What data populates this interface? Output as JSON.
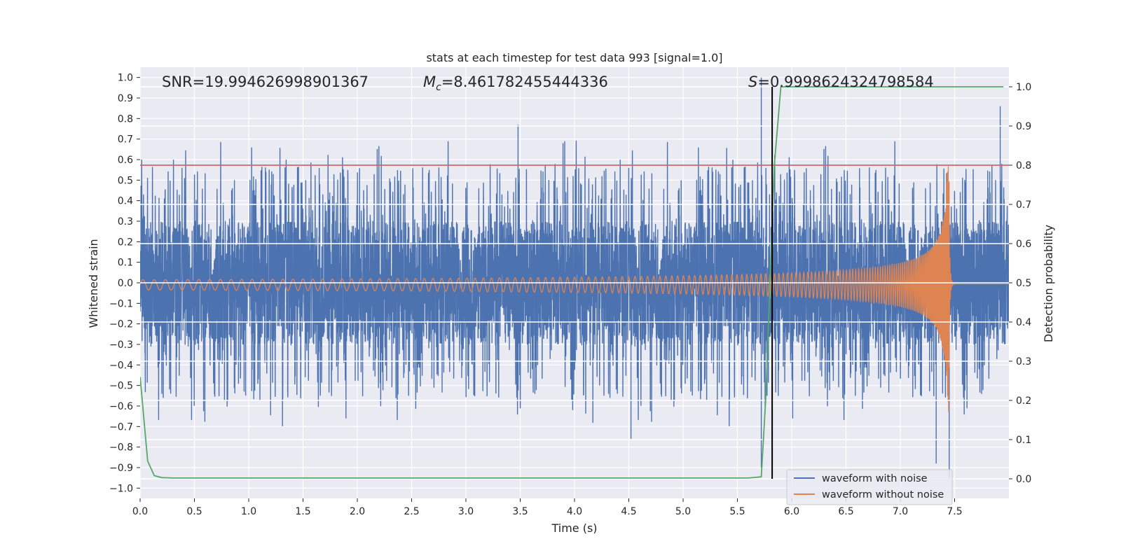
{
  "chart_data": {
    "type": "line",
    "title": "stats at each timestep for test data 993 [signal=1.0]",
    "xlabel": "Time (s)",
    "ylabel": "Whitened strain",
    "y2label": "Detection probability",
    "xlim": [
      0.0,
      8.0
    ],
    "ylim": [
      -1.05,
      1.05
    ],
    "y2lim": [
      -0.05,
      1.05
    ],
    "xticks": [
      "0.0",
      "0.5",
      "1.0",
      "1.5",
      "2.0",
      "2.5",
      "3.0",
      "3.5",
      "4.0",
      "4.5",
      "5.0",
      "5.5",
      "6.0",
      "6.5",
      "7.0",
      "7.5"
    ],
    "yticks": [
      "1.0",
      "0.9",
      "0.8",
      "0.7",
      "0.6",
      "0.5",
      "0.4",
      "0.3",
      "0.2",
      "0.1",
      "0.0",
      "−0.1",
      "−0.2",
      "−0.3",
      "−0.4",
      "−0.5",
      "−0.6",
      "−0.7",
      "−0.8",
      "−0.9",
      "−1.0"
    ],
    "y2ticks": [
      "1.0",
      "0.9",
      "0.8",
      "0.7",
      "0.6",
      "0.5",
      "0.4",
      "0.3",
      "0.2",
      "0.1",
      "0.0"
    ],
    "grid": true,
    "legend_placement": "lower-right",
    "annotations": {
      "snr": "SNR=19.994626998901367",
      "mc": "=8.461782455444336",
      "s": "=0.9998624324798584"
    },
    "threshold_y": 0.8,
    "detection_time": 5.82,
    "colors": {
      "noise": "#4c72b0",
      "clean": "#dd8452",
      "probability": "#55a868",
      "threshold": "#c44e52",
      "marker": "#000000",
      "plot_bg": "#eaeaf2"
    },
    "series": [
      {
        "name": "waveform with noise",
        "kind": "noise",
        "amplitude_envelope": 0.3,
        "notable_peaks": [
          {
            "x": 5.72,
            "y": 1.0
          },
          {
            "x": 7.92,
            "y": 0.86
          },
          {
            "x": 3.48,
            "y": 0.77
          },
          {
            "x": 5.72,
            "y": -0.9
          },
          {
            "x": 7.45,
            "y": -0.95
          },
          {
            "x": 7.33,
            "y": -0.88
          },
          {
            "x": 4.52,
            "y": -0.76
          }
        ]
      },
      {
        "name": "waveform without noise",
        "kind": "chirp",
        "start_amplitude": 0.025,
        "peak_x": 7.45,
        "peak_y": 0.52,
        "min_y": -0.63
      },
      {
        "name": "",
        "kind": "probability",
        "axis": "right",
        "x": [
          0.0,
          0.07,
          0.13,
          0.2,
          0.3,
          1.0,
          2.0,
          3.0,
          4.0,
          5.0,
          5.6,
          5.72,
          5.76,
          5.8,
          5.84,
          5.9,
          6.5,
          7.0,
          7.5,
          7.95
        ],
        "y": [
          0.26,
          0.045,
          0.008,
          0.003,
          0.002,
          0.002,
          0.002,
          0.002,
          0.002,
          0.002,
          0.002,
          0.005,
          0.2,
          0.5,
          0.8,
          1.0,
          1.0,
          1.0,
          1.0,
          1.0
        ]
      }
    ]
  }
}
